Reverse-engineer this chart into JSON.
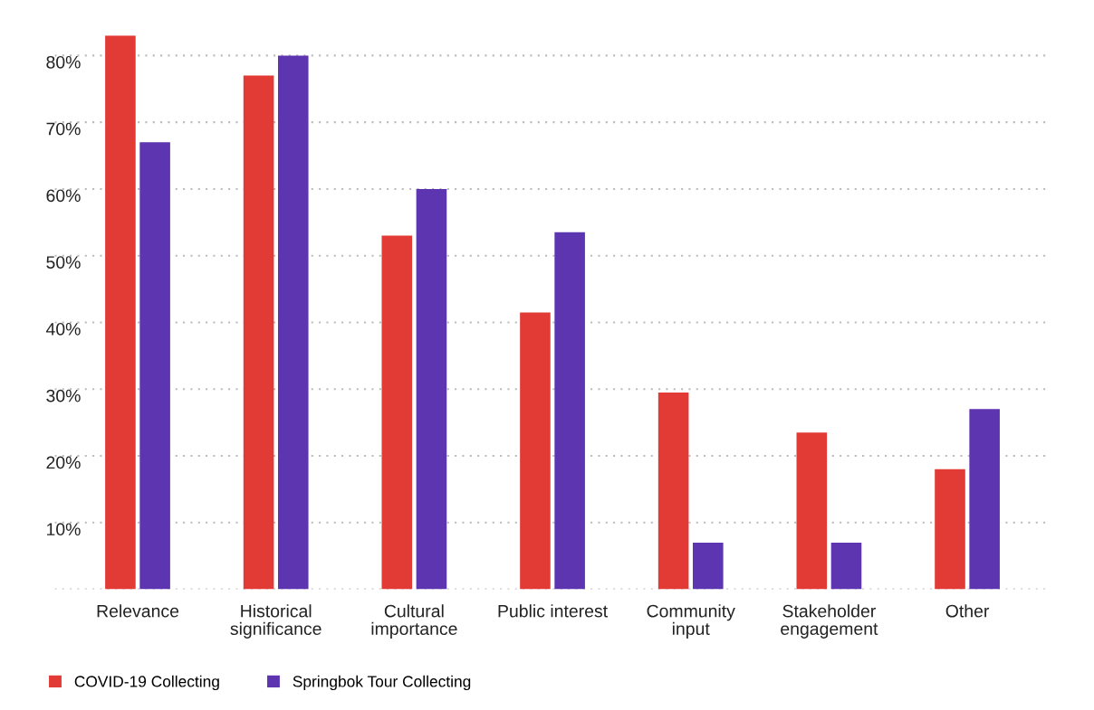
{
  "chart_data": {
    "type": "bar",
    "categories": [
      "Relevance",
      "Historical\nsignificance",
      "Cultural\nimportance",
      "Public interest",
      "Community\ninput",
      "Stakeholder\nengagement",
      "Other"
    ],
    "series": [
      {
        "name": "COVID-19 Collecting",
        "color": "#e23a35",
        "values": [
          83,
          77,
          53,
          41.5,
          29.5,
          23.5,
          18
        ]
      },
      {
        "name": "Springbok Tour Collecting",
        "color": "#5e35b1",
        "values": [
          67,
          80,
          60,
          53.5,
          7,
          7,
          27
        ]
      }
    ],
    "ylim": [
      0,
      83
    ],
    "yticks": [
      {
        "value": 0,
        "label": null
      },
      {
        "value": 10,
        "label": "10%"
      },
      {
        "value": 20,
        "label": "20%"
      },
      {
        "value": 30,
        "label": "30%"
      },
      {
        "value": 40,
        "label": "40%"
      },
      {
        "value": 50,
        "label": "50%"
      },
      {
        "value": 60,
        "label": "60%"
      },
      {
        "value": 70,
        "label": "70%"
      },
      {
        "value": 80,
        "label": "80%"
      }
    ],
    "grid": "y",
    "legend": "bottom left"
  }
}
